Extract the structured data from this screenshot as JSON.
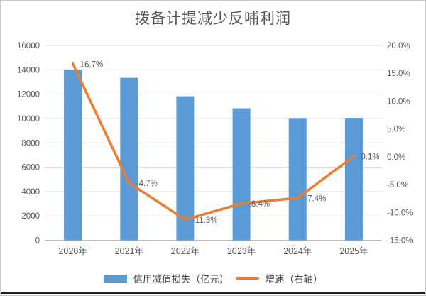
{
  "chart_data": {
    "type": "combo-bar-line",
    "title": "拨备计提减少反哺利润",
    "categories": [
      "2020年",
      "2021年",
      "2022年",
      "2023年",
      "2024年",
      "2025年"
    ],
    "series": [
      {
        "name": "信用减值损失（亿元）",
        "type": "bar",
        "axis": "left",
        "color": "#5B9BD5",
        "values": [
          14000,
          13340,
          11830,
          10840,
          10040,
          10050
        ]
      },
      {
        "name": "增速（右轴）",
        "type": "line",
        "axis": "right",
        "color": "#ED7D31",
        "values": [
          16.7,
          -4.7,
          -11.3,
          -8.4,
          -7.4,
          0.1
        ],
        "point_labels": [
          "16.7%",
          "-4.7%",
          "-11.3%",
          "-8.4%",
          "-7.4%",
          "0.1%"
        ]
      }
    ],
    "left_axis": {
      "min": 0,
      "max": 16000,
      "step": 2000,
      "tick_labels": [
        "16000",
        "14000",
        "12000",
        "10000",
        "8000",
        "6000",
        "4000",
        "2000",
        "0"
      ]
    },
    "right_axis": {
      "min": -15,
      "max": 20,
      "step": 5,
      "tick_labels": [
        "20.0%",
        "15.0%",
        "10.0%",
        "5.0%",
        "0.0%",
        "-5.0%",
        "-10.0%",
        "-15.0%"
      ]
    },
    "grid": "horizontal",
    "gridline_color": "#D9D9D9",
    "axis_line_color": "#BFBFBF",
    "label_color": "#404040",
    "legend_position": "bottom"
  }
}
